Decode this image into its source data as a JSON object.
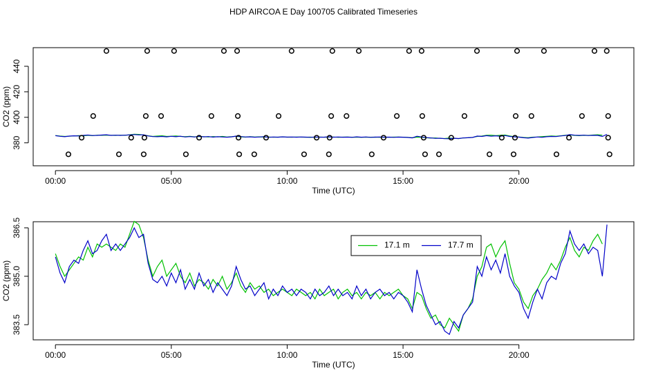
{
  "title": "HDP AIRCOA E  Day 100705  Calibrated Timeseries",
  "chart_data": [
    {
      "type": "scatter",
      "xlabel": "Time (UTC)",
      "ylabel": "CO2 (ppm)",
      "xlim": [
        -0.96,
        24.96
      ],
      "xticks": [
        {
          "value": 0,
          "label": "00:00"
        },
        {
          "value": 5,
          "label": "05:00"
        },
        {
          "value": 10,
          "label": "10:00"
        },
        {
          "value": 15,
          "label": "15:00"
        },
        {
          "value": 20,
          "label": "20:00"
        }
      ],
      "ylim": [
        362,
        454.6
      ],
      "yticks": [
        380,
        400,
        420,
        440
      ],
      "color": "#000000",
      "x": [
        2.2,
        3.96,
        5.12,
        7.27,
        7.84,
        10.19,
        11.95,
        13.09,
        15.26,
        15.8,
        18.19,
        19.92,
        21.08,
        23.26,
        23.79,
        1.63,
        3.9,
        4.56,
        6.73,
        7.87,
        9.63,
        11.9,
        12.56,
        14.73,
        15.83,
        17.65,
        19.86,
        20.54,
        22.72,
        23.85,
        1.13,
        3.27,
        3.84,
        6.2,
        7.9,
        9.09,
        11.27,
        11.83,
        14.16,
        15.89,
        17.08,
        19.26,
        19.83,
        22.16,
        23.85,
        0.56,
        2.74,
        3.81,
        5.63,
        7.93,
        8.58,
        10.73,
        11.8,
        13.65,
        15.95,
        16.55,
        18.73,
        19.77,
        21.62,
        23.91
      ],
      "values": [
        452,
        452,
        452,
        452,
        452,
        452,
        452,
        452,
        452,
        452,
        452,
        452,
        452,
        452,
        452,
        401,
        401,
        401,
        401,
        401,
        401,
        401,
        401,
        401,
        401,
        401,
        401,
        401,
        401,
        401,
        384,
        384,
        384,
        384,
        384,
        384,
        384,
        384,
        384,
        384,
        384,
        384,
        384,
        384,
        384,
        371,
        371,
        371,
        371,
        371,
        371,
        371,
        371,
        371,
        371,
        371,
        371,
        371,
        371,
        371
      ]
    },
    {
      "type": "line",
      "xlabel": "Time (UTC)",
      "ylabel": "CO2 (ppm)",
      "xlim": [
        -0.96,
        24.96
      ],
      "xticks": [
        {
          "value": 0,
          "label": "00:00"
        },
        {
          "value": 5,
          "label": "05:00"
        },
        {
          "value": 10,
          "label": "10:00"
        },
        {
          "value": 15,
          "label": "15:00"
        },
        {
          "value": 20,
          "label": "20:00"
        }
      ],
      "ylim": [
        383.03,
        386.69
      ],
      "yticks": [
        383.5,
        {
          "value": 385,
          "label": "385.0"
        },
        386.5
      ],
      "legend": "top-right",
      "x": [
        0,
        0.2,
        0.4,
        0.6,
        0.8,
        1,
        1.2,
        1.4,
        1.6,
        1.8,
        2,
        2.2,
        2.4,
        2.6,
        2.8,
        3,
        3.2,
        3.4,
        3.6,
        3.8,
        4,
        4.2,
        4.4,
        4.6,
        4.8,
        5,
        5.2,
        5.4,
        5.6,
        5.8,
        6,
        6.2,
        6.4,
        6.6,
        6.8,
        7,
        7.2,
        7.4,
        7.6,
        7.8,
        8,
        8.2,
        8.4,
        8.6,
        8.8,
        9,
        9.2,
        9.4,
        9.6,
        9.8,
        10,
        10.2,
        10.4,
        10.6,
        10.8,
        11,
        11.2,
        11.4,
        11.6,
        11.8,
        12,
        12.2,
        12.4,
        12.6,
        12.8,
        13,
        13.2,
        13.4,
        13.6,
        13.8,
        14,
        14.2,
        14.4,
        14.6,
        14.8,
        15,
        15.2,
        15.4,
        15.6,
        15.8,
        16,
        16.2,
        16.4,
        16.6,
        16.8,
        17,
        17.2,
        17.4,
        17.6,
        17.8,
        18,
        18.2,
        18.4,
        18.6,
        18.8,
        19,
        19.2,
        19.4,
        19.6,
        19.8,
        20,
        20.2,
        20.4,
        20.6,
        20.8,
        21,
        21.2,
        21.4,
        21.6,
        21.8,
        22,
        22.2,
        22.4,
        22.6,
        22.8,
        23,
        23.2,
        23.4,
        23.6,
        23.8
      ],
      "series": [
        {
          "name": "17.1 m",
          "color": "#00c000",
          "values": [
            385.7,
            385.3,
            385.0,
            385.2,
            385.4,
            385.6,
            385.5,
            385.9,
            385.6,
            386.0,
            385.9,
            386.0,
            385.9,
            385.8,
            386.0,
            385.9,
            386.3,
            386.7,
            386.6,
            386.2,
            385.5,
            385.0,
            385.3,
            385.5,
            385.0,
            385.2,
            385.4,
            385.0,
            384.8,
            385.1,
            384.7,
            384.9,
            384.8,
            384.6,
            384.9,
            384.7,
            385.0,
            384.6,
            384.8,
            385.1,
            384.7,
            384.5,
            384.8,
            384.6,
            384.7,
            384.5,
            384.6,
            384.4,
            384.5,
            384.6,
            384.5,
            384.4,
            384.6,
            384.5,
            384.4,
            384.5,
            384.3,
            384.6,
            384.4,
            384.5,
            384.6,
            384.3,
            384.5,
            384.6,
            384.4,
            384.5,
            384.3,
            384.5,
            384.4,
            384.5,
            384.3,
            384.5,
            384.4,
            384.5,
            384.6,
            384.4,
            384.3,
            384.0,
            384.5,
            384.4,
            384.0,
            383.7,
            383.8,
            383.5,
            383.4,
            383.7,
            383.5,
            383.3,
            383.8,
            384.0,
            384.3,
            385.0,
            385.3,
            385.9,
            386.0,
            385.6,
            385.9,
            386.1,
            385.4,
            384.8,
            384.6,
            384.2,
            384.0,
            384.4,
            384.6,
            384.9,
            385.1,
            385.4,
            385.2,
            385.5,
            385.9,
            386.2,
            385.8,
            385.6,
            385.9,
            385.8,
            386.1,
            386.3,
            386.0,
            null
          ]
        },
        {
          "name": "17.7 m",
          "color": "#0000c8",
          "values": [
            385.6,
            385.1,
            384.8,
            385.3,
            385.5,
            385.4,
            385.8,
            386.1,
            385.7,
            385.8,
            386.1,
            386.3,
            385.8,
            386.0,
            385.8,
            386.0,
            386.2,
            386.5,
            386.2,
            386.3,
            385.4,
            384.9,
            384.8,
            385.0,
            384.7,
            385.1,
            384.8,
            385.2,
            384.6,
            384.9,
            384.6,
            385.1,
            384.7,
            384.9,
            384.5,
            384.8,
            384.6,
            384.4,
            384.7,
            385.3,
            384.9,
            384.6,
            384.7,
            384.4,
            384.6,
            384.8,
            384.3,
            384.6,
            384.4,
            384.7,
            384.5,
            384.6,
            384.4,
            384.6,
            384.5,
            384.3,
            384.6,
            384.4,
            384.5,
            384.7,
            384.4,
            384.6,
            384.4,
            384.5,
            384.3,
            384.7,
            384.4,
            384.6,
            384.3,
            384.5,
            384.6,
            384.4,
            384.5,
            384.3,
            384.5,
            384.4,
            384.2,
            383.9,
            385.2,
            384.6,
            384.1,
            383.8,
            383.5,
            383.6,
            383.3,
            383.2,
            383.6,
            383.4,
            383.8,
            384.0,
            384.2,
            385.3,
            385.0,
            385.6,
            385.2,
            385.5,
            385.1,
            385.7,
            385.0,
            384.7,
            384.5,
            384.0,
            383.7,
            384.2,
            384.6,
            384.3,
            384.8,
            385.0,
            384.9,
            385.4,
            385.7,
            386.4,
            386.0,
            385.8,
            386.0,
            385.7,
            385.9,
            385.8,
            385.0,
            386.6
          ]
        }
      ]
    }
  ]
}
